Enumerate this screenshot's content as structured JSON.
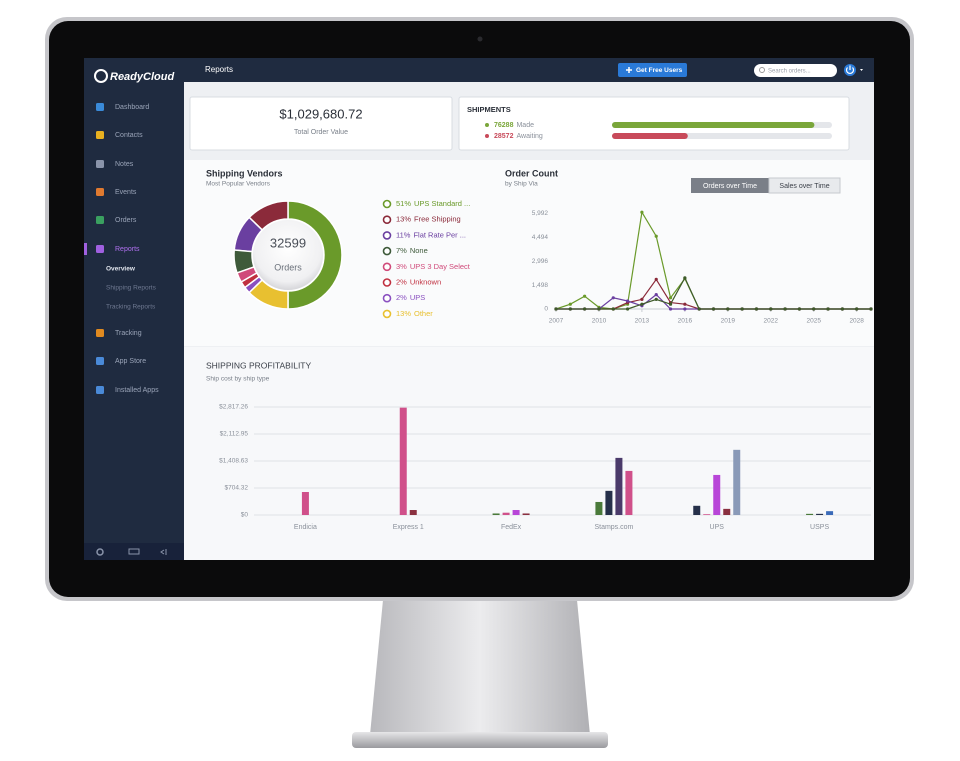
{
  "sidebar": {
    "brand": "ReadyCloud",
    "nav": [
      "Dashboard",
      "Contacts",
      "Notes",
      "Events",
      "Orders",
      "Reports",
      "Tracking",
      "App Store",
      "Installed Apps"
    ],
    "reports_sub": [
      "Overview",
      "Shipping Reports",
      "Tracking Reports"
    ]
  },
  "header": {
    "title": "Reports",
    "button": "Get Free Users",
    "search": "Search orders..."
  },
  "total_order_value": {
    "value": "$1,029,680.72",
    "label": "Total Order Value"
  },
  "shipments": {
    "title": "SHIPMENTS",
    "items": [
      {
        "value": 76288,
        "label": "Made",
        "color": "#7aa63a"
      },
      {
        "value": 28572,
        "label": "Awaiting",
        "color": "#c84a5a"
      }
    ]
  },
  "chart_data": [
    {
      "type": "pie",
      "title": "Shipping Vendors",
      "subtitle": "Most Popular Vendors",
      "total": 32599,
      "total_label": "Orders",
      "categories": [
        "UPS Standard ...",
        "Free Shipping",
        "Flat Rate Per ...",
        "None",
        "UPS 3 Day Select",
        "Unknown",
        "UPS",
        "Other"
      ],
      "values": [
        51,
        13,
        11,
        7,
        3,
        2,
        2,
        13
      ],
      "value_labels": [
        "51%",
        "13%",
        "11%",
        "7%",
        "3%",
        "2%",
        "2%",
        "13%"
      ],
      "colors": [
        "#6a9a2a",
        "#8b2a3a",
        "#6a3fa0",
        "#3e5a3a",
        "#d04a7a",
        "#c03040",
        "#8a50c0",
        "#e8c030"
      ]
    },
    {
      "type": "line",
      "title": "Order Count",
      "subtitle": "by Ship Via",
      "toggles": [
        "Orders over Time",
        "Sales over Time"
      ],
      "x": [
        2007,
        2008,
        2009,
        2010,
        2011,
        2012,
        2013,
        2014,
        2015,
        2016,
        2017,
        2018,
        2019,
        2020,
        2021,
        2022,
        2023,
        2024,
        2025,
        2026,
        2027,
        2028,
        2029
      ],
      "series": [
        {
          "color": "#6a9a2a",
          "values": [
            0,
            300,
            800,
            100,
            0,
            300,
            6050,
            4550,
            700,
            1900,
            0,
            0,
            0,
            0,
            0,
            0,
            0,
            0,
            0,
            0,
            0,
            0,
            0
          ]
        },
        {
          "color": "#8b2a3a",
          "values": [
            0,
            0,
            0,
            0,
            0,
            400,
            600,
            1850,
            400,
            300,
            0,
            0,
            0,
            0,
            0,
            0,
            0,
            0,
            0,
            0,
            0,
            0,
            0
          ]
        },
        {
          "color": "#6a3fa0",
          "values": [
            0,
            0,
            0,
            0,
            700,
            500,
            200,
            900,
            0,
            0,
            0,
            0,
            0,
            0,
            0,
            0,
            0,
            0,
            0,
            0,
            0,
            0,
            0
          ]
        },
        {
          "color": "#3e5a2a",
          "values": [
            0,
            0,
            0,
            0,
            0,
            0,
            300,
            600,
            300,
            1950,
            0,
            0,
            0,
            0,
            0,
            0,
            0,
            0,
            0,
            0,
            0,
            0,
            0
          ]
        }
      ],
      "xlim": [
        2007,
        2029
      ],
      "xticks": [
        2007,
        2010,
        2013,
        2016,
        2019,
        2022,
        2025,
        2028
      ],
      "ylim": [
        0,
        6500
      ],
      "yticks": [
        0,
        {
          "value": 1498,
          "label": "1,498"
        },
        {
          "value": 2996,
          "label": "2,996"
        },
        {
          "value": 4494,
          "label": "4,494"
        },
        {
          "value": 5992,
          "label": "5,992"
        }
      ],
      "grid": false
    },
    {
      "type": "bar",
      "title": "SHIPPING PROFITABILITY",
      "subtitle": "Ship cost by ship type",
      "categories": [
        "Endicia",
        "Express 1",
        "FedEx",
        "Stamps.com",
        "UPS",
        "USPS"
      ],
      "series": [
        {
          "color": "#4a7a3a",
          "values": [
            null,
            null,
            40,
            340,
            null,
            30
          ]
        },
        {
          "color": "#26304a",
          "values": [
            null,
            null,
            null,
            630,
            240,
            30
          ]
        },
        {
          "color": "#4a3a6a",
          "values": [
            null,
            null,
            null,
            1490,
            null,
            null
          ]
        },
        {
          "color": "#d0508a",
          "values": [
            600,
            2800,
            60,
            1150,
            20,
            null
          ]
        },
        {
          "color": "#b846d8",
          "values": [
            null,
            null,
            130,
            null,
            1045,
            null
          ]
        },
        {
          "color": "#8a3040",
          "values": [
            null,
            130,
            40,
            null,
            160,
            null
          ]
        },
        {
          "color": "#8a9ab8",
          "values": [
            null,
            null,
            null,
            null,
            1700,
            null
          ]
        },
        {
          "color": "#3a6ab8",
          "values": [
            null,
            null,
            null,
            null,
            null,
            100
          ]
        }
      ],
      "ylim": [
        0,
        3000
      ],
      "yticks": [
        {
          "value": 0,
          "label": "$0"
        },
        {
          "value": 704.32,
          "label": "$704.32"
        },
        {
          "value": 1408.63,
          "label": "$1,408.63"
        },
        {
          "value": 2112.95,
          "label": "$2,112.95"
        },
        {
          "value": 2817.26,
          "label": "$2,817.26"
        }
      ],
      "grid": true
    }
  ]
}
